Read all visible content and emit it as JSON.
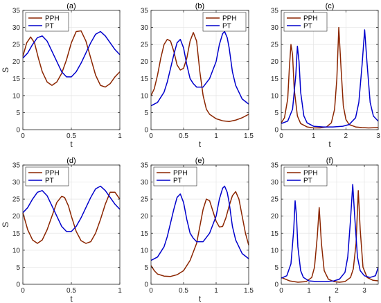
{
  "chart_data": [
    {
      "type": "line",
      "title": "(a)",
      "xlabel": "t",
      "ylabel": "S",
      "xlim": [
        0,
        1
      ],
      "ylim": [
        0,
        35
      ],
      "xticks": [
        0,
        0.5,
        1
      ],
      "xtick_labels": [
        "0",
        "0.5",
        "1"
      ],
      "yticks": [
        0,
        5,
        10,
        15,
        20,
        25,
        30,
        35
      ],
      "grid": true,
      "legend_position": "top-left",
      "series": [
        {
          "name": "PPH",
          "color": "#8B2500",
          "x": [
            0,
            0.04,
            0.08,
            0.12,
            0.16,
            0.2,
            0.25,
            0.3,
            0.35,
            0.4,
            0.45,
            0.5,
            0.55,
            0.6,
            0.65,
            0.7,
            0.75,
            0.8,
            0.85,
            0.9,
            0.95,
            1.0
          ],
          "y": [
            21.5,
            25.5,
            27.2,
            25.5,
            21.0,
            17.0,
            14.0,
            13.0,
            14.0,
            16.5,
            20.5,
            25.5,
            28.8,
            29.0,
            26.0,
            21.0,
            16.0,
            13.0,
            12.5,
            13.5,
            15.5,
            17.0
          ]
        },
        {
          "name": "PT",
          "color": "#0000CC",
          "x": [
            0,
            0.05,
            0.1,
            0.15,
            0.2,
            0.25,
            0.3,
            0.35,
            0.4,
            0.45,
            0.5,
            0.55,
            0.6,
            0.65,
            0.7,
            0.75,
            0.8,
            0.85,
            0.9,
            0.95,
            1.0
          ],
          "y": [
            21.0,
            22.5,
            25.0,
            27.0,
            27.5,
            26.0,
            23.0,
            20.0,
            17.0,
            15.5,
            15.5,
            17.0,
            19.5,
            22.5,
            25.5,
            28.0,
            28.8,
            27.5,
            25.5,
            23.5,
            22.0
          ]
        }
      ]
    },
    {
      "type": "line",
      "title": "(b)",
      "xlabel": "t",
      "ylabel": "",
      "xlim": [
        0,
        1.5
      ],
      "ylim": [
        0,
        35
      ],
      "xticks": [
        0,
        0.5,
        1,
        1.5
      ],
      "xtick_labels": [
        "0",
        "0.5",
        "1",
        "1.5"
      ],
      "yticks": [
        0,
        5,
        10,
        15,
        20,
        25,
        30,
        35
      ],
      "grid": true,
      "legend_position": "top-right",
      "series": [
        {
          "name": "PPH",
          "color": "#8B2500",
          "x": [
            0,
            0.05,
            0.1,
            0.15,
            0.2,
            0.25,
            0.3,
            0.35,
            0.4,
            0.45,
            0.5,
            0.55,
            0.6,
            0.65,
            0.7,
            0.75,
            0.8,
            0.85,
            0.9,
            1.0,
            1.1,
            1.2,
            1.3,
            1.4,
            1.5
          ],
          "y": [
            10.0,
            12.0,
            16.0,
            21.0,
            25.0,
            26.5,
            26.0,
            23.0,
            19.0,
            17.5,
            18.0,
            21.0,
            26.0,
            28.5,
            26.0,
            17.0,
            10.0,
            6.0,
            4.5,
            3.2,
            2.6,
            2.4,
            2.8,
            3.5,
            4.5
          ]
        },
        {
          "name": "PT",
          "color": "#0000CC",
          "x": [
            0,
            0.1,
            0.2,
            0.25,
            0.3,
            0.35,
            0.4,
            0.45,
            0.5,
            0.55,
            0.6,
            0.65,
            0.7,
            0.8,
            0.9,
            1.0,
            1.05,
            1.1,
            1.13,
            1.17,
            1.2,
            1.25,
            1.3,
            1.4,
            1.5
          ],
          "y": [
            7.0,
            8.0,
            11.0,
            14.0,
            18.0,
            22.0,
            25.5,
            26.5,
            24.0,
            19.0,
            15.0,
            13.5,
            12.5,
            12.5,
            15.0,
            20.0,
            25.0,
            28.2,
            28.8,
            27.0,
            24.0,
            17.0,
            13.0,
            9.0,
            7.5
          ]
        }
      ]
    },
    {
      "type": "line",
      "title": "(c)",
      "xlabel": "t",
      "ylabel": "",
      "xlim": [
        0,
        3
      ],
      "ylim": [
        0,
        35
      ],
      "xticks": [
        0,
        1,
        2,
        3
      ],
      "xtick_labels": [
        "0",
        "1",
        "2",
        "3"
      ],
      "yticks": [
        0,
        5,
        10,
        15,
        20,
        25,
        30,
        35
      ],
      "grid": true,
      "legend_position": "top-left",
      "series": [
        {
          "name": "PPH",
          "color": "#8B2500",
          "x": [
            0,
            0.1,
            0.2,
            0.25,
            0.3,
            0.35,
            0.4,
            0.5,
            0.6,
            0.8,
            1.0,
            1.2,
            1.4,
            1.55,
            1.65,
            1.72,
            1.78,
            1.85,
            1.92,
            2.0,
            2.1,
            2.3,
            2.5,
            2.7,
            3.0
          ],
          "y": [
            2.0,
            3.5,
            9.0,
            18.0,
            25.0,
            22.0,
            12.0,
            4.0,
            1.8,
            0.8,
            0.5,
            0.5,
            0.8,
            2.0,
            6.0,
            15.0,
            30.0,
            18.0,
            7.0,
            3.0,
            1.5,
            0.8,
            0.6,
            0.5,
            0.6
          ]
        },
        {
          "name": "PT",
          "color": "#0000CC",
          "x": [
            0,
            0.2,
            0.35,
            0.45,
            0.5,
            0.55,
            0.6,
            0.7,
            0.8,
            1.0,
            1.3,
            1.6,
            1.9,
            2.1,
            2.3,
            2.4,
            2.5,
            2.58,
            2.65,
            2.75,
            2.85,
            3.0
          ],
          "y": [
            1.8,
            2.5,
            6.0,
            16.0,
            24.5,
            20.0,
            11.0,
            4.0,
            2.0,
            1.0,
            0.8,
            0.8,
            1.0,
            1.5,
            3.5,
            8.0,
            19.0,
            29.3,
            20.0,
            8.0,
            4.0,
            2.5
          ]
        }
      ]
    },
    {
      "type": "line",
      "title": "(d)",
      "xlabel": "t",
      "ylabel": "S",
      "xlim": [
        0,
        1
      ],
      "ylim": [
        0,
        35
      ],
      "xticks": [
        0,
        0.5,
        1
      ],
      "xtick_labels": [
        "0",
        "0.5",
        "1"
      ],
      "yticks": [
        0,
        5,
        10,
        15,
        20,
        25,
        30,
        35
      ],
      "grid": true,
      "legend_position": "top-left",
      "series": [
        {
          "name": "PPH",
          "color": "#8B2500",
          "x": [
            0,
            0.05,
            0.1,
            0.15,
            0.2,
            0.25,
            0.3,
            0.35,
            0.4,
            0.43,
            0.47,
            0.5,
            0.55,
            0.6,
            0.65,
            0.7,
            0.75,
            0.8,
            0.85,
            0.9,
            0.95,
            1.0
          ],
          "y": [
            21.0,
            16.0,
            13.0,
            12.0,
            13.0,
            16.0,
            20.0,
            24.0,
            25.8,
            25.5,
            23.0,
            20.0,
            15.5,
            12.8,
            12.0,
            12.5,
            15.0,
            19.0,
            23.5,
            27.0,
            27.0,
            25.0
          ]
        },
        {
          "name": "PT",
          "color": "#0000CC",
          "x": [
            0,
            0.05,
            0.1,
            0.15,
            0.2,
            0.25,
            0.3,
            0.35,
            0.4,
            0.45,
            0.5,
            0.55,
            0.6,
            0.65,
            0.7,
            0.75,
            0.8,
            0.85,
            0.9,
            0.95,
            1.0
          ],
          "y": [
            21.0,
            22.5,
            25.0,
            27.0,
            27.5,
            26.0,
            23.0,
            20.0,
            17.0,
            15.5,
            15.5,
            17.0,
            19.5,
            22.5,
            25.5,
            28.0,
            28.8,
            27.5,
            25.5,
            23.5,
            22.0
          ]
        }
      ]
    },
    {
      "type": "line",
      "title": "(e)",
      "xlabel": "t",
      "ylabel": "",
      "xlim": [
        0,
        1.5
      ],
      "ylim": [
        0,
        35
      ],
      "xticks": [
        0,
        0.5,
        1,
        1.5
      ],
      "xtick_labels": [
        "0",
        "0.5",
        "1",
        "1.5"
      ],
      "yticks": [
        0,
        5,
        10,
        15,
        20,
        25,
        30,
        35
      ],
      "grid": true,
      "legend_position": "top-left",
      "series": [
        {
          "name": "PPH",
          "color": "#8B2500",
          "x": [
            0,
            0.05,
            0.1,
            0.2,
            0.3,
            0.4,
            0.5,
            0.6,
            0.7,
            0.75,
            0.8,
            0.85,
            0.9,
            0.95,
            1.0,
            1.05,
            1.1,
            1.15,
            1.2,
            1.25,
            1.3,
            1.35,
            1.4,
            1.45,
            1.5
          ],
          "y": [
            5.5,
            4.0,
            3.0,
            2.4,
            2.3,
            2.8,
            4.0,
            7.0,
            12.0,
            17.0,
            22.0,
            25.0,
            24.5,
            21.5,
            18.5,
            16.8,
            17.0,
            19.5,
            23.0,
            26.0,
            27.2,
            25.0,
            20.0,
            15.0,
            11.5
          ]
        },
        {
          "name": "PT",
          "color": "#0000CC",
          "x": [
            0,
            0.1,
            0.2,
            0.25,
            0.3,
            0.35,
            0.4,
            0.45,
            0.5,
            0.55,
            0.6,
            0.65,
            0.7,
            0.8,
            0.9,
            1.0,
            1.05,
            1.1,
            1.13,
            1.17,
            1.2,
            1.25,
            1.3,
            1.4,
            1.5
          ],
          "y": [
            7.0,
            8.0,
            11.0,
            14.0,
            18.0,
            22.0,
            25.5,
            26.5,
            24.0,
            19.0,
            15.0,
            13.5,
            12.5,
            12.5,
            15.0,
            20.0,
            25.0,
            28.2,
            28.8,
            27.0,
            24.0,
            17.0,
            13.0,
            9.0,
            7.5
          ]
        }
      ]
    },
    {
      "type": "line",
      "title": "(f)",
      "xlabel": "t",
      "ylabel": "",
      "xlim": [
        0,
        3.5
      ],
      "ylim": [
        0,
        35
      ],
      "xticks": [
        0,
        1,
        2,
        3
      ],
      "xtick_labels": [
        "0",
        "1",
        "2",
        "3"
      ],
      "yticks": [
        0,
        5,
        10,
        15,
        20,
        25,
        30,
        35
      ],
      "grid": true,
      "legend_position": "top-left",
      "series": [
        {
          "name": "PPH",
          "color": "#8B2500",
          "x": [
            0,
            0.3,
            0.6,
            0.9,
            1.1,
            1.2,
            1.3,
            1.37,
            1.45,
            1.55,
            1.7,
            1.9,
            2.1,
            2.3,
            2.5,
            2.6,
            2.7,
            2.78,
            2.85,
            2.95,
            3.1,
            3.3,
            3.5
          ],
          "y": [
            2.0,
            1.0,
            0.6,
            0.8,
            2.0,
            5.0,
            14.0,
            22.5,
            12.0,
            4.0,
            1.5,
            0.8,
            0.6,
            0.8,
            2.0,
            4.5,
            12.0,
            27.5,
            16.0,
            5.0,
            2.0,
            1.2,
            1.0
          ]
        },
        {
          "name": "PT",
          "color": "#0000CC",
          "x": [
            0,
            0.2,
            0.35,
            0.45,
            0.5,
            0.55,
            0.6,
            0.7,
            0.8,
            1.0,
            1.3,
            1.6,
            1.9,
            2.1,
            2.3,
            2.4,
            2.5,
            2.58,
            2.65,
            2.75,
            2.85,
            3.0,
            3.2,
            3.4,
            3.5
          ],
          "y": [
            1.8,
            2.5,
            6.0,
            16.0,
            24.5,
            20.0,
            11.0,
            4.0,
            2.0,
            1.0,
            0.8,
            0.8,
            1.0,
            1.5,
            3.5,
            8.0,
            19.0,
            29.3,
            20.0,
            8.0,
            4.0,
            2.5,
            2.0,
            2.5,
            5.0
          ]
        }
      ]
    }
  ]
}
